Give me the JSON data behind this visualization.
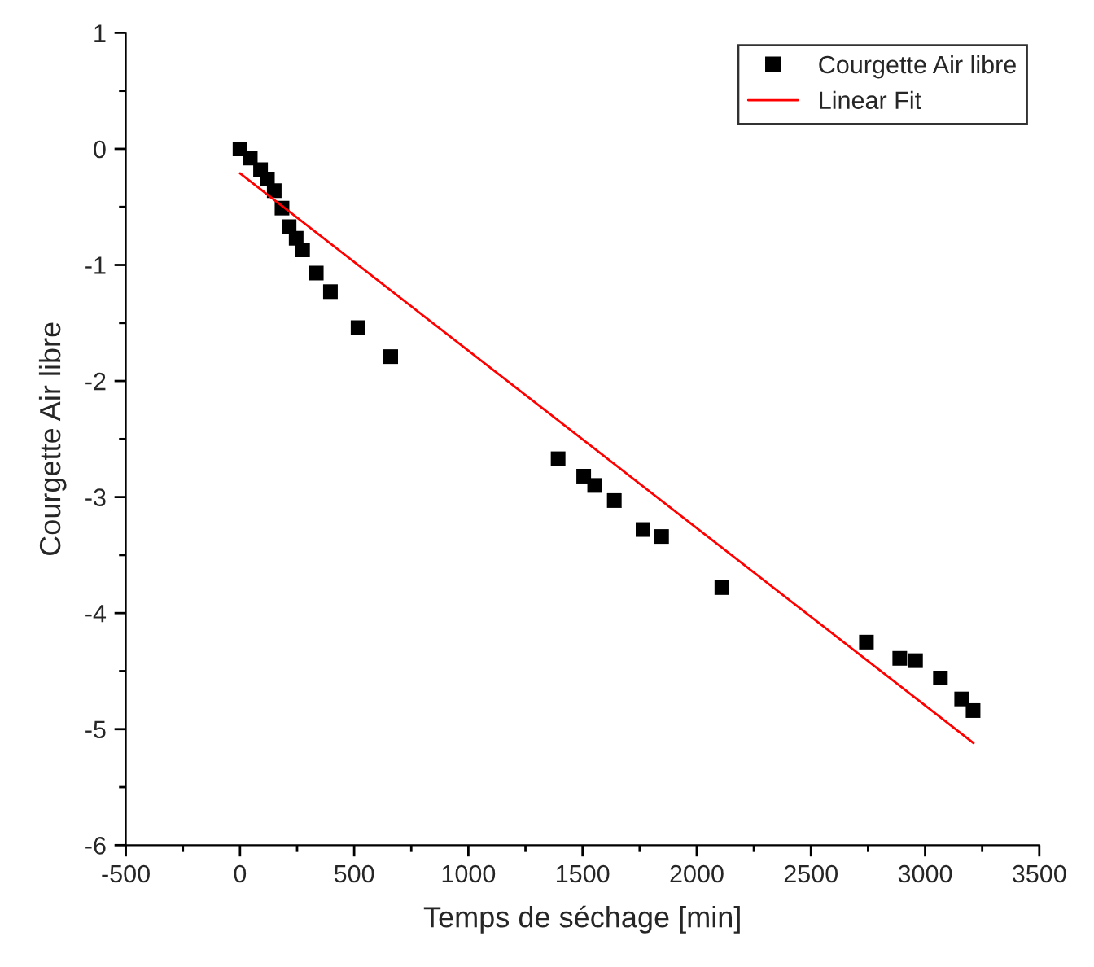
{
  "chart_data": {
    "type": "scatter",
    "xlabel": "Temps de séchage [min]",
    "ylabel": "Courgette Air libre",
    "xlim": [
      -500,
      3500
    ],
    "xticks": [
      -500,
      0,
      500,
      1000,
      1500,
      2000,
      2500,
      3000,
      3500
    ],
    "ylim": [
      -6,
      1
    ],
    "yticks": [
      -6,
      -5,
      -4,
      -3,
      -2,
      -1,
      0,
      1
    ],
    "grid": false,
    "legend": "top right",
    "series": [
      {
        "name": "Courgette Air libre",
        "marker": "square",
        "color": "#000000",
        "x": [
          0,
          45,
          90,
          120,
          150,
          184,
          215,
          246,
          274,
          334,
          396,
          517,
          660,
          1393,
          1505,
          1553,
          1639,
          1765,
          1846,
          2110,
          2743,
          2889,
          2958,
          3067,
          3160,
          3210
        ],
        "values": [
          0,
          -0.08,
          -0.18,
          -0.26,
          -0.36,
          -0.51,
          -0.67,
          -0.77,
          -0.87,
          -1.07,
          -1.23,
          -1.54,
          -1.79,
          -2.67,
          -2.82,
          -2.9,
          -3.03,
          -3.28,
          -3.34,
          -3.78,
          -4.25,
          -4.39,
          -4.41,
          -4.56,
          -4.74,
          -4.84
        ]
      },
      {
        "name": "Linear Fit",
        "type": "line",
        "color": "#ff0000",
        "line_style": "solid",
        "x": [
          0,
          3212
        ],
        "values": [
          -0.21,
          -5.12
        ]
      }
    ]
  }
}
